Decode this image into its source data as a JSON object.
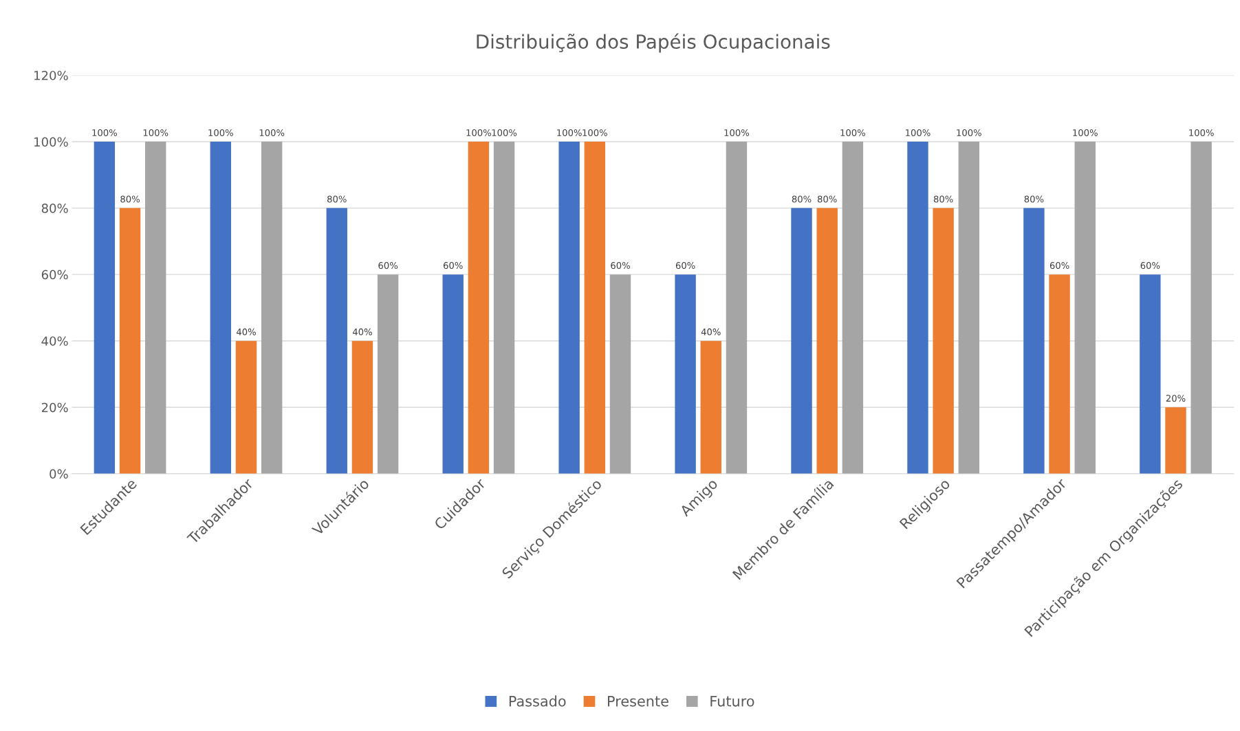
{
  "chart_data": {
    "type": "bar",
    "title": "Distribuição dos Papéis Ocupacionais",
    "categories": [
      "Estudante",
      "Trabalhador",
      "Voluntário",
      "Cuidador",
      "Serviço Doméstico",
      "Amigo",
      "Membro de Família",
      "Religioso",
      "Passatempo/Amador",
      "Participação em Organizações"
    ],
    "series": [
      {
        "name": "Passado",
        "color": "#4472c4",
        "values": [
          100,
          100,
          80,
          60,
          100,
          60,
          80,
          100,
          80,
          60
        ],
        "value_labels": [
          "100%",
          "100%",
          "80%",
          "60%",
          "100%",
          "60%",
          "80%",
          "100%",
          "80%",
          "60%"
        ]
      },
      {
        "name": "Presente",
        "color": "#ed7d31",
        "values": [
          80,
          40,
          40,
          100,
          100,
          40,
          80,
          80,
          60,
          20
        ],
        "value_labels": [
          "80%",
          "40%",
          "40%",
          "100%",
          "100%",
          "40%",
          "80%",
          "80%",
          "60%",
          "20%"
        ]
      },
      {
        "name": "Futuro",
        "color": "#a5a5a5",
        "values": [
          100,
          100,
          60,
          100,
          60,
          100,
          100,
          100,
          100,
          100
        ],
        "value_labels": [
          "100%",
          "100%",
          "60%",
          "100%",
          "60%",
          "100%",
          "100%",
          "100%",
          "100%",
          "100%"
        ]
      }
    ],
    "ylim": [
      0,
      120
    ],
    "yticks": [
      {
        "value": 0,
        "label": "0%"
      },
      {
        "value": 20,
        "label": "20%"
      },
      {
        "value": 40,
        "label": "40%"
      },
      {
        "value": 60,
        "label": "60%"
      },
      {
        "value": 80,
        "label": "80%"
      },
      {
        "value": 100,
        "label": "100%"
      },
      {
        "value": 120,
        "label": "120%"
      }
    ],
    "grid": "y",
    "legend": "bottom"
  }
}
